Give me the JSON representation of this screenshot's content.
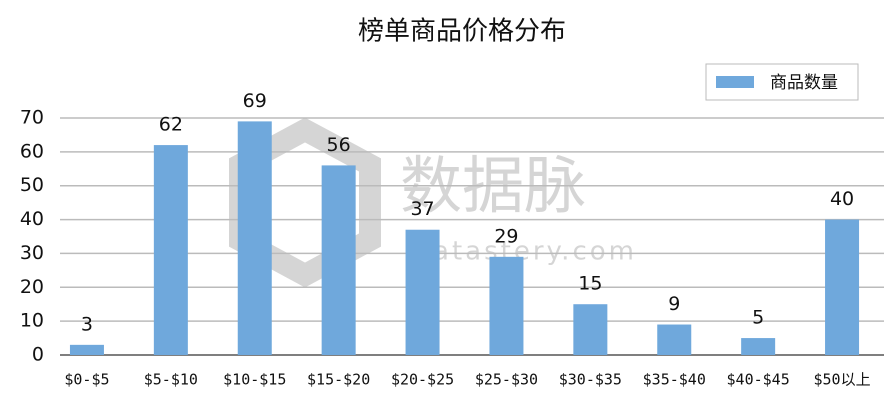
{
  "chart_data": {
    "type": "bar",
    "title": "榜单商品价格分布",
    "categories": [
      "$0-$5",
      "$5-$10",
      "$10-$15",
      "$15-$20",
      "$20-$25",
      "$25-$30",
      "$30-$35",
      "$35-$40",
      "$40-$45",
      "$50以上"
    ],
    "series": [
      {
        "name": "商品数量",
        "color": "#6fa8dc",
        "values": [
          3,
          62,
          69,
          56,
          37,
          29,
          15,
          9,
          5,
          40
        ]
      }
    ],
    "ylim": [
      0,
      70
    ],
    "yticks": [
      0,
      10,
      20,
      30,
      40,
      50,
      60,
      70
    ],
    "grid": true,
    "legend": "top-right",
    "watermark": [
      "数据脉",
      "Datastery.com"
    ]
  }
}
